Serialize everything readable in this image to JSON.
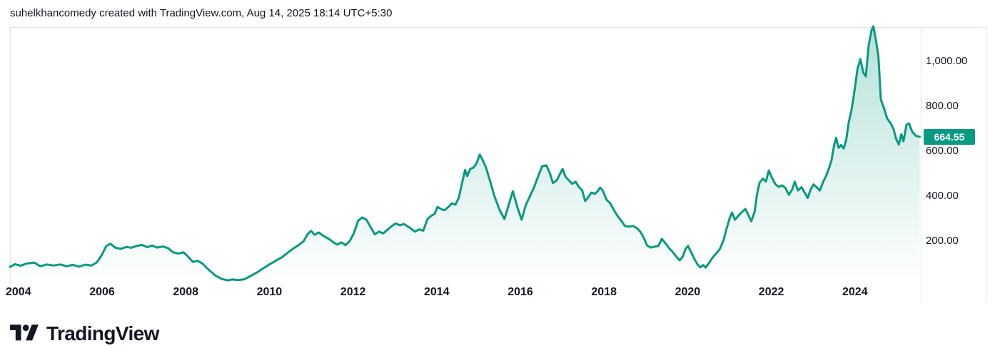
{
  "header": {
    "attribution": "suhelkhancomedy created with TradingView.com, Aug 14, 2025 18:14 UTC+5:30"
  },
  "chart_data": {
    "type": "area",
    "title": "",
    "xlabel": "",
    "ylabel": "",
    "x_ticks": [
      2004,
      2006,
      2008,
      2010,
      2012,
      2014,
      2016,
      2018,
      2020,
      2022,
      2024
    ],
    "y_ticks": [
      {
        "value": 200,
        "label": "200.00"
      },
      {
        "value": 400,
        "label": "400.00"
      },
      {
        "value": 600,
        "label": "600.00"
      },
      {
        "value": 800,
        "label": "800.00"
      },
      {
        "value": 1000,
        "label": "1,000.00"
      }
    ],
    "x_visible_range": [
      2003.8,
      2025.79
    ],
    "y_visible_range": [
      13,
      1153
    ],
    "grid": false,
    "legend": false,
    "last_price": {
      "value": 664.55,
      "label": "664.55"
    },
    "colors": {
      "line": "#089981",
      "fill_top": "rgba(8,153,129,0.30)",
      "fill_bottom": "rgba(8,153,129,0.0)",
      "badge_bg": "#089981",
      "badge_text": "#ffffff",
      "axis_text": "#131722",
      "border": "#e0e3eb"
    },
    "series": [
      {
        "name": "price",
        "points": [
          [
            2003.8,
            85
          ],
          [
            2003.92,
            97
          ],
          [
            2004.05,
            90
          ],
          [
            2004.2,
            100
          ],
          [
            2004.38,
            104
          ],
          [
            2004.52,
            88
          ],
          [
            2004.68,
            96
          ],
          [
            2004.84,
            91
          ],
          [
            2005.0,
            96
          ],
          [
            2005.15,
            88
          ],
          [
            2005.3,
            94
          ],
          [
            2005.45,
            86
          ],
          [
            2005.6,
            95
          ],
          [
            2005.75,
            91
          ],
          [
            2005.88,
            106
          ],
          [
            2006.0,
            140
          ],
          [
            2006.1,
            178
          ],
          [
            2006.2,
            188
          ],
          [
            2006.32,
            170
          ],
          [
            2006.45,
            165
          ],
          [
            2006.58,
            174
          ],
          [
            2006.7,
            170
          ],
          [
            2006.82,
            178
          ],
          [
            2006.95,
            183
          ],
          [
            2007.08,
            173
          ],
          [
            2007.2,
            180
          ],
          [
            2007.32,
            171
          ],
          [
            2007.45,
            176
          ],
          [
            2007.58,
            168
          ],
          [
            2007.7,
            150
          ],
          [
            2007.82,
            144
          ],
          [
            2007.95,
            150
          ],
          [
            2008.06,
            130
          ],
          [
            2008.17,
            107
          ],
          [
            2008.28,
            112
          ],
          [
            2008.4,
            100
          ],
          [
            2008.55,
            72
          ],
          [
            2008.7,
            48
          ],
          [
            2008.85,
            32
          ],
          [
            2009.0,
            25
          ],
          [
            2009.12,
            29
          ],
          [
            2009.25,
            26
          ],
          [
            2009.4,
            30
          ],
          [
            2009.55,
            44
          ],
          [
            2009.7,
            60
          ],
          [
            2009.85,
            78
          ],
          [
            2010.0,
            96
          ],
          [
            2010.15,
            112
          ],
          [
            2010.3,
            128
          ],
          [
            2010.45,
            150
          ],
          [
            2010.58,
            168
          ],
          [
            2010.7,
            182
          ],
          [
            2010.82,
            200
          ],
          [
            2010.92,
            232
          ],
          [
            2011.0,
            245
          ],
          [
            2011.08,
            228
          ],
          [
            2011.18,
            238
          ],
          [
            2011.3,
            222
          ],
          [
            2011.42,
            210
          ],
          [
            2011.52,
            196
          ],
          [
            2011.62,
            184
          ],
          [
            2011.72,
            194
          ],
          [
            2011.82,
            182
          ],
          [
            2011.92,
            200
          ],
          [
            2012.02,
            235
          ],
          [
            2012.12,
            290
          ],
          [
            2012.22,
            305
          ],
          [
            2012.32,
            295
          ],
          [
            2012.42,
            262
          ],
          [
            2012.52,
            230
          ],
          [
            2012.62,
            242
          ],
          [
            2012.72,
            234
          ],
          [
            2012.82,
            250
          ],
          [
            2012.92,
            266
          ],
          [
            2013.02,
            278
          ],
          [
            2013.12,
            270
          ],
          [
            2013.22,
            276
          ],
          [
            2013.35,
            260
          ],
          [
            2013.48,
            242
          ],
          [
            2013.58,
            252
          ],
          [
            2013.68,
            246
          ],
          [
            2013.78,
            298
          ],
          [
            2013.86,
            311
          ],
          [
            2013.95,
            321
          ],
          [
            2014.02,
            352
          ],
          [
            2014.1,
            343
          ],
          [
            2014.19,
            337
          ],
          [
            2014.28,
            352
          ],
          [
            2014.36,
            368
          ],
          [
            2014.45,
            362
          ],
          [
            2014.53,
            394
          ],
          [
            2014.6,
            454
          ],
          [
            2014.68,
            517
          ],
          [
            2014.73,
            489
          ],
          [
            2014.8,
            521
          ],
          [
            2014.88,
            527
          ],
          [
            2014.95,
            545
          ],
          [
            2015.03,
            585
          ],
          [
            2015.1,
            560
          ],
          [
            2015.18,
            527
          ],
          [
            2015.28,
            465
          ],
          [
            2015.38,
            400
          ],
          [
            2015.5,
            340
          ],
          [
            2015.62,
            298
          ],
          [
            2015.72,
            360
          ],
          [
            2015.82,
            422
          ],
          [
            2015.93,
            350
          ],
          [
            2016.03,
            295
          ],
          [
            2016.13,
            360
          ],
          [
            2016.23,
            400
          ],
          [
            2016.33,
            440
          ],
          [
            2016.43,
            490
          ],
          [
            2016.52,
            533
          ],
          [
            2016.62,
            537
          ],
          [
            2016.7,
            505
          ],
          [
            2016.78,
            458
          ],
          [
            2016.87,
            470
          ],
          [
            2016.95,
            500
          ],
          [
            2017.01,
            521
          ],
          [
            2017.08,
            486
          ],
          [
            2017.16,
            470
          ],
          [
            2017.24,
            455
          ],
          [
            2017.32,
            464
          ],
          [
            2017.4,
            441
          ],
          [
            2017.48,
            425
          ],
          [
            2017.55,
            378
          ],
          [
            2017.62,
            394
          ],
          [
            2017.7,
            416
          ],
          [
            2017.78,
            410
          ],
          [
            2017.85,
            422
          ],
          [
            2017.91,
            438
          ],
          [
            2017.97,
            425
          ],
          [
            2018.06,
            384
          ],
          [
            2018.15,
            368
          ],
          [
            2018.24,
            337
          ],
          [
            2018.33,
            310
          ],
          [
            2018.42,
            289
          ],
          [
            2018.5,
            267
          ],
          [
            2018.6,
            264
          ],
          [
            2018.7,
            267
          ],
          [
            2018.79,
            257
          ],
          [
            2018.87,
            241
          ],
          [
            2018.95,
            215
          ],
          [
            2019.03,
            180
          ],
          [
            2019.12,
            171
          ],
          [
            2019.21,
            175
          ],
          [
            2019.3,
            178
          ],
          [
            2019.38,
            210
          ],
          [
            2019.47,
            190
          ],
          [
            2019.56,
            168
          ],
          [
            2019.65,
            150
          ],
          [
            2019.74,
            128
          ],
          [
            2019.81,
            114
          ],
          [
            2019.88,
            130
          ],
          [
            2019.95,
            165
          ],
          [
            2020.01,
            178
          ],
          [
            2020.08,
            152
          ],
          [
            2020.16,
            120
          ],
          [
            2020.24,
            95
          ],
          [
            2020.3,
            83
          ],
          [
            2020.37,
            93
          ],
          [
            2020.43,
            82
          ],
          [
            2020.52,
            105
          ],
          [
            2020.61,
            130
          ],
          [
            2020.7,
            148
          ],
          [
            2020.78,
            168
          ],
          [
            2020.86,
            205
          ],
          [
            2020.93,
            255
          ],
          [
            2021.01,
            305
          ],
          [
            2021.06,
            327
          ],
          [
            2021.13,
            295
          ],
          [
            2021.21,
            312
          ],
          [
            2021.3,
            330
          ],
          [
            2021.38,
            343
          ],
          [
            2021.46,
            312
          ],
          [
            2021.52,
            288
          ],
          [
            2021.6,
            330
          ],
          [
            2021.66,
            410
          ],
          [
            2021.72,
            460
          ],
          [
            2021.8,
            478
          ],
          [
            2021.87,
            465
          ],
          [
            2021.94,
            514
          ],
          [
            2022.02,
            480
          ],
          [
            2022.1,
            452
          ],
          [
            2022.18,
            441
          ],
          [
            2022.26,
            448
          ],
          [
            2022.34,
            436
          ],
          [
            2022.42,
            406
          ],
          [
            2022.5,
            430
          ],
          [
            2022.56,
            464
          ],
          [
            2022.64,
            425
          ],
          [
            2022.72,
            440
          ],
          [
            2022.8,
            415
          ],
          [
            2022.87,
            392
          ],
          [
            2022.94,
            430
          ],
          [
            2023.01,
            452
          ],
          [
            2023.09,
            438
          ],
          [
            2023.16,
            425
          ],
          [
            2023.24,
            464
          ],
          [
            2023.31,
            490
          ],
          [
            2023.38,
            525
          ],
          [
            2023.44,
            560
          ],
          [
            2023.5,
            625
          ],
          [
            2023.55,
            660
          ],
          [
            2023.61,
            615
          ],
          [
            2023.67,
            628
          ],
          [
            2023.73,
            612
          ],
          [
            2023.79,
            650
          ],
          [
            2023.85,
            727
          ],
          [
            2023.92,
            785
          ],
          [
            2023.99,
            870
          ],
          [
            2024.06,
            965
          ],
          [
            2024.13,
            1010
          ],
          [
            2024.2,
            950
          ],
          [
            2024.26,
            933
          ],
          [
            2024.33,
            1073
          ],
          [
            2024.4,
            1140
          ],
          [
            2024.44,
            1156
          ],
          [
            2024.5,
            1095
          ],
          [
            2024.56,
            1025
          ],
          [
            2024.62,
            830
          ],
          [
            2024.7,
            788
          ],
          [
            2024.77,
            746
          ],
          [
            2024.85,
            725
          ],
          [
            2024.92,
            700
          ],
          [
            2024.99,
            652
          ],
          [
            2025.05,
            630
          ],
          [
            2025.11,
            676
          ],
          [
            2025.16,
            644
          ],
          [
            2025.23,
            717
          ],
          [
            2025.29,
            724
          ],
          [
            2025.37,
            686
          ],
          [
            2025.46,
            668
          ],
          [
            2025.55,
            664.55
          ]
        ]
      }
    ]
  },
  "footer": {
    "logo_text": "TradingView"
  }
}
